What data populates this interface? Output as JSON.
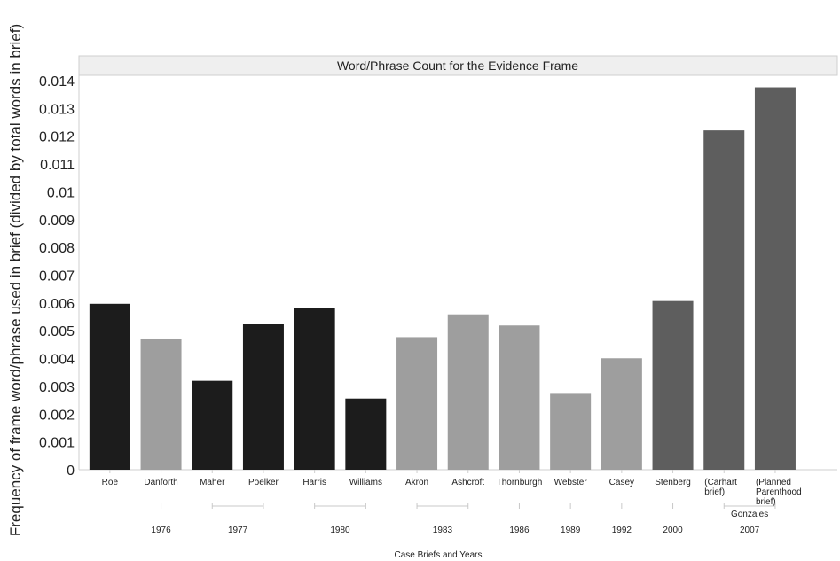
{
  "chart_data": {
    "type": "bar",
    "title": "Word/Phrase Count for the Evidence Frame",
    "xlabel": "Case Briefs and Years",
    "ylabel": "Frequency of frame word/phrase used in brief (divided by total words in brief)",
    "ylim": [
      0,
      0.014
    ],
    "yticks": [
      "0",
      "0.001",
      "0.002",
      "0.003",
      "0.004",
      "0.005",
      "0.006",
      "0.007",
      "0.008",
      "0.009",
      "0.01",
      "0.011",
      "0.012",
      "0.013",
      "0.014"
    ],
    "grid": false,
    "legend": "none",
    "categories": [
      {
        "label": [
          "Roe"
        ],
        "value": 0.00597,
        "color": "#1c1c1c"
      },
      {
        "label": [
          "Danforth"
        ],
        "value": 0.00472,
        "color": "#9e9e9e"
      },
      {
        "label": [
          "Maher"
        ],
        "value": 0.0032,
        "color": "#1c1c1c"
      },
      {
        "label": [
          "Poelker"
        ],
        "value": 0.00523,
        "color": "#1c1c1c"
      },
      {
        "label": [
          "Harris"
        ],
        "value": 0.00581,
        "color": "#1c1c1c"
      },
      {
        "label": [
          "Williams"
        ],
        "value": 0.00256,
        "color": "#1c1c1c"
      },
      {
        "label": [
          "Akron"
        ],
        "value": 0.00477,
        "color": "#9e9e9e"
      },
      {
        "label": [
          "Ashcroft"
        ],
        "value": 0.00559,
        "color": "#9e9e9e"
      },
      {
        "label": [
          "Thornburgh"
        ],
        "value": 0.00519,
        "color": "#9e9e9e"
      },
      {
        "label": [
          "Webster"
        ],
        "value": 0.00273,
        "color": "#9e9e9e"
      },
      {
        "label": [
          "Casey"
        ],
        "value": 0.00401,
        "color": "#9e9e9e"
      },
      {
        "label": [
          "Stenberg"
        ],
        "value": 0.00607,
        "color": "#5e5e5e"
      },
      {
        "label": [
          "(Carhart",
          "brief)"
        ],
        "value": 0.01221,
        "color": "#5e5e5e"
      },
      {
        "label": [
          "(Planned",
          "Parenthood",
          "brief)"
        ],
        "value": 0.01376,
        "color": "#5e5e5e"
      }
    ],
    "groups": [
      {
        "label": "1976",
        "members": [
          1
        ]
      },
      {
        "label": "1977",
        "members": [
          2,
          3
        ]
      },
      {
        "label": "1980",
        "members": [
          4,
          5
        ]
      },
      {
        "label": "1983",
        "members": [
          6,
          7
        ]
      },
      {
        "label": "1986",
        "members": [
          8
        ]
      },
      {
        "label": "1989",
        "members": [
          9
        ]
      },
      {
        "label": "1992",
        "members": [
          10
        ]
      },
      {
        "label": "2000",
        "members": [
          11
        ]
      },
      {
        "label": "2007",
        "members": [
          12,
          13
        ],
        "sublabel": "Gonzales"
      }
    ]
  }
}
